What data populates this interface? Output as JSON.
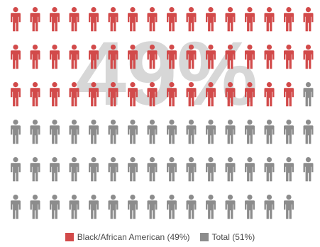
{
  "chart_data": {
    "type": "pictogram",
    "overlay_label": "49%",
    "total_icons": 95,
    "columns": 16,
    "series": [
      {
        "name": "Black/African American",
        "percent": 49,
        "icons": 47,
        "color": "#d24a4a"
      },
      {
        "name": "Total",
        "percent": 51,
        "icons": 48,
        "color": "#8c8c8c"
      }
    ]
  },
  "legend": {
    "items": [
      {
        "label": "Black/African American (49%)",
        "color": "#d24a4a"
      },
      {
        "label": "Total (51%)",
        "color": "#8c8c8c"
      }
    ]
  }
}
